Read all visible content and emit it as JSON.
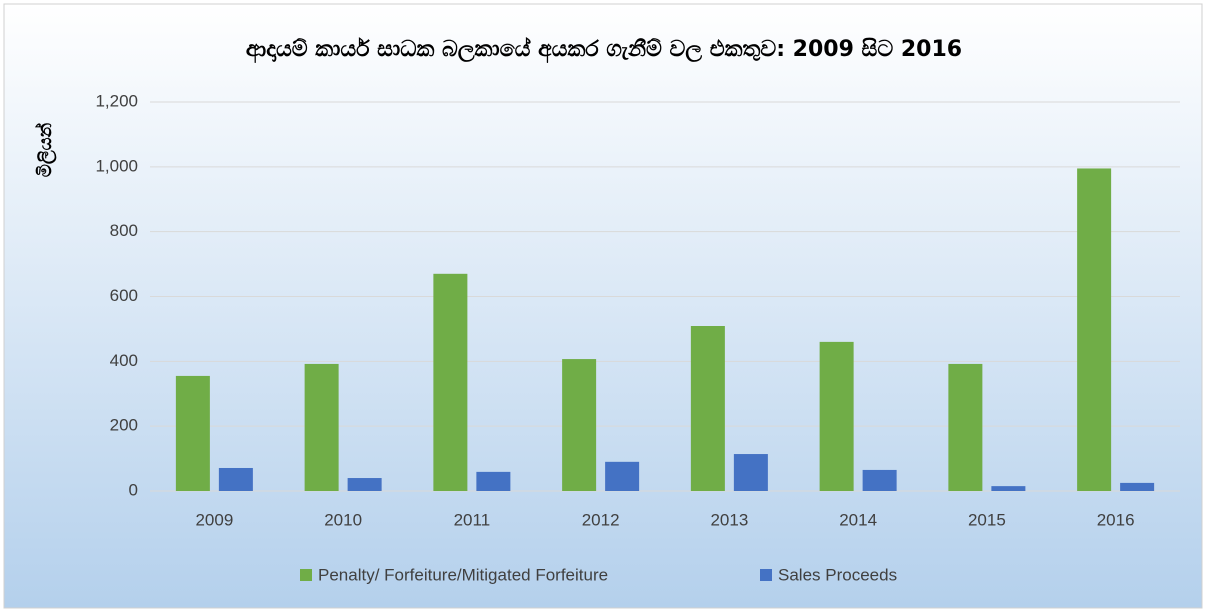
{
  "chart_data": {
    "type": "bar",
    "title": "ආදායම් කාර්ය සාධක බලකායේ අයකර ගැනීම් වල එකතුව: 2009 සිට 2016",
    "y_label": "මිලියන්",
    "categories": [
      "2009",
      "2010",
      "2011",
      "2012",
      "2013",
      "2014",
      "2015",
      "2016"
    ],
    "series": [
      {
        "name": "Penalty/ Forfeiture/Mitigated Forfeiture",
        "color": "#70ad47",
        "values": [
          355,
          392,
          670,
          407,
          509,
          460,
          392,
          995
        ]
      },
      {
        "name": "Sales Proceeds",
        "color": "#4472c4",
        "values": [
          71,
          40,
          59,
          90,
          114,
          65,
          15,
          25
        ]
      }
    ],
    "ylim": [
      0,
      1200
    ],
    "yticks": [
      0,
      200,
      400,
      600,
      800,
      {
        "value": 1000,
        "label": "1,000"
      },
      {
        "value": 1200,
        "label": "1,200"
      }
    ],
    "grid": true,
    "legend": "bottom"
  }
}
